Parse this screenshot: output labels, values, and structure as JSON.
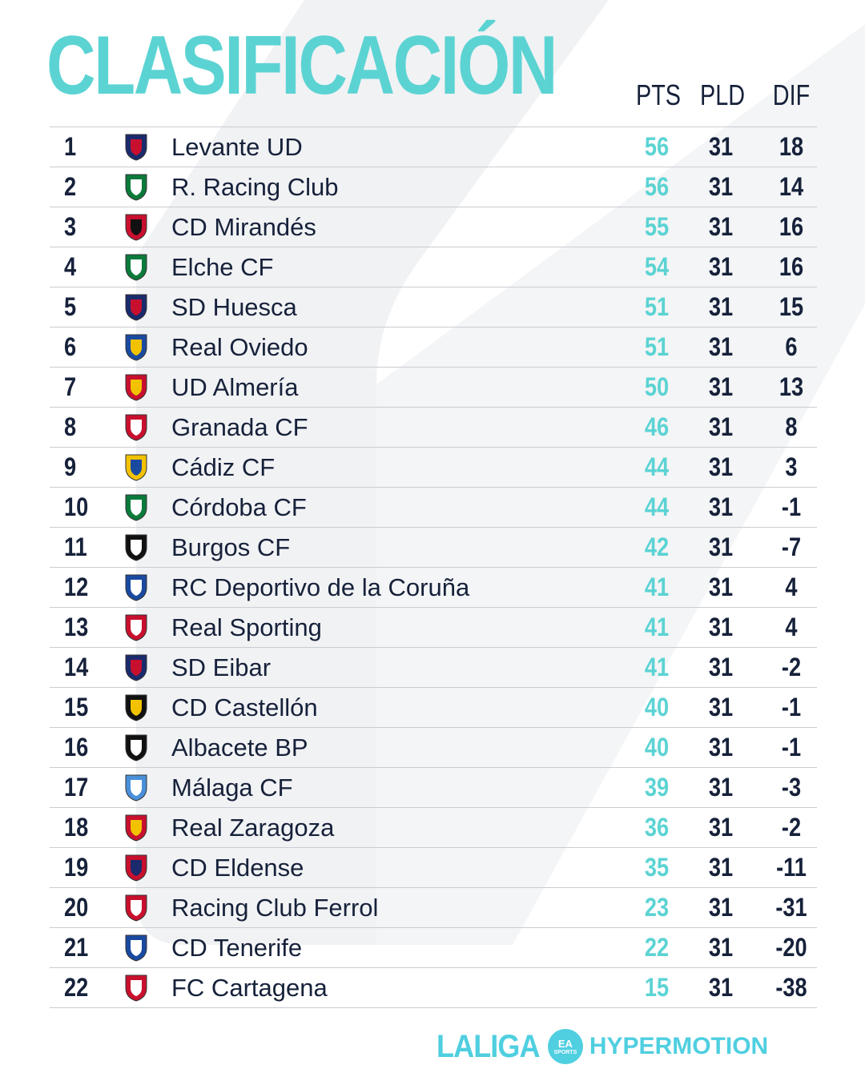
{
  "header": {
    "title": "CLASIFICACIÓN",
    "col_pts": "PTS",
    "col_pld": "PLD",
    "col_dif": "DIF"
  },
  "colors": {
    "accent": "#5cd3d3",
    "text": "#16213a",
    "divider": "#c9ccd2"
  },
  "rows": [
    {
      "pos": "1",
      "team": "Levante UD",
      "pts": "56",
      "pld": "31",
      "dif": "18",
      "crest": "levante-crest"
    },
    {
      "pos": "2",
      "team": "R. Racing Club",
      "pts": "56",
      "pld": "31",
      "dif": "14",
      "crest": "racing-crest"
    },
    {
      "pos": "3",
      "team": "CD Mirandés",
      "pts": "55",
      "pld": "31",
      "dif": "16",
      "crest": "mirandes-crest"
    },
    {
      "pos": "4",
      "team": "Elche CF",
      "pts": "54",
      "pld": "31",
      "dif": "16",
      "crest": "elche-crest"
    },
    {
      "pos": "5",
      "team": "SD Huesca",
      "pts": "51",
      "pld": "31",
      "dif": "15",
      "crest": "huesca-crest"
    },
    {
      "pos": "6",
      "team": "Real Oviedo",
      "pts": "51",
      "pld": "31",
      "dif": "6",
      "crest": "oviedo-crest"
    },
    {
      "pos": "7",
      "team": "UD Almería",
      "pts": "50",
      "pld": "31",
      "dif": "13",
      "crest": "almeria-crest"
    },
    {
      "pos": "8",
      "team": "Granada CF",
      "pts": "46",
      "pld": "31",
      "dif": "8",
      "crest": "granada-crest"
    },
    {
      "pos": "9",
      "team": "Cádiz CF",
      "pts": "44",
      "pld": "31",
      "dif": "3",
      "crest": "cadiz-crest"
    },
    {
      "pos": "10",
      "team": "Córdoba CF",
      "pts": "44",
      "pld": "31",
      "dif": "-1",
      "crest": "cordoba-crest"
    },
    {
      "pos": "11",
      "team": "Burgos CF",
      "pts": "42",
      "pld": "31",
      "dif": "-7",
      "crest": "burgos-crest"
    },
    {
      "pos": "12",
      "team": "RC Deportivo de la Coruña",
      "pts": "41",
      "pld": "31",
      "dif": "4",
      "crest": "deportivo-crest"
    },
    {
      "pos": "13",
      "team": "Real Sporting",
      "pts": "41",
      "pld": "31",
      "dif": "4",
      "crest": "sporting-crest"
    },
    {
      "pos": "14",
      "team": "SD Eibar",
      "pts": "41",
      "pld": "31",
      "dif": "-2",
      "crest": "eibar-crest"
    },
    {
      "pos": "15",
      "team": "CD Castellón",
      "pts": "40",
      "pld": "31",
      "dif": "-1",
      "crest": "castellon-crest"
    },
    {
      "pos": "16",
      "team": "Albacete BP",
      "pts": "40",
      "pld": "31",
      "dif": "-1",
      "crest": "albacete-crest"
    },
    {
      "pos": "17",
      "team": "Málaga CF",
      "pts": "39",
      "pld": "31",
      "dif": "-3",
      "crest": "malaga-crest"
    },
    {
      "pos": "18",
      "team": "Real Zaragoza",
      "pts": "36",
      "pld": "31",
      "dif": "-2",
      "crest": "zaragoza-crest"
    },
    {
      "pos": "19",
      "team": "CD Eldense",
      "pts": "35",
      "pld": "31",
      "dif": "-11",
      "crest": "eldense-crest"
    },
    {
      "pos": "20",
      "team": "Racing Club Ferrol",
      "pts": "23",
      "pld": "31",
      "dif": "-31",
      "crest": "ferrol-crest"
    },
    {
      "pos": "21",
      "team": "CD Tenerife",
      "pts": "22",
      "pld": "31",
      "dif": "-20",
      "crest": "tenerife-crest"
    },
    {
      "pos": "22",
      "team": "FC Cartagena",
      "pts": "15",
      "pld": "31",
      "dif": "-38",
      "crest": "cartagena-crest"
    }
  ],
  "footer": {
    "brand": "LALIGA",
    "badge_top": "EA",
    "badge_bottom": "SPORTS",
    "hypermotion": "HYPERMOTION"
  }
}
